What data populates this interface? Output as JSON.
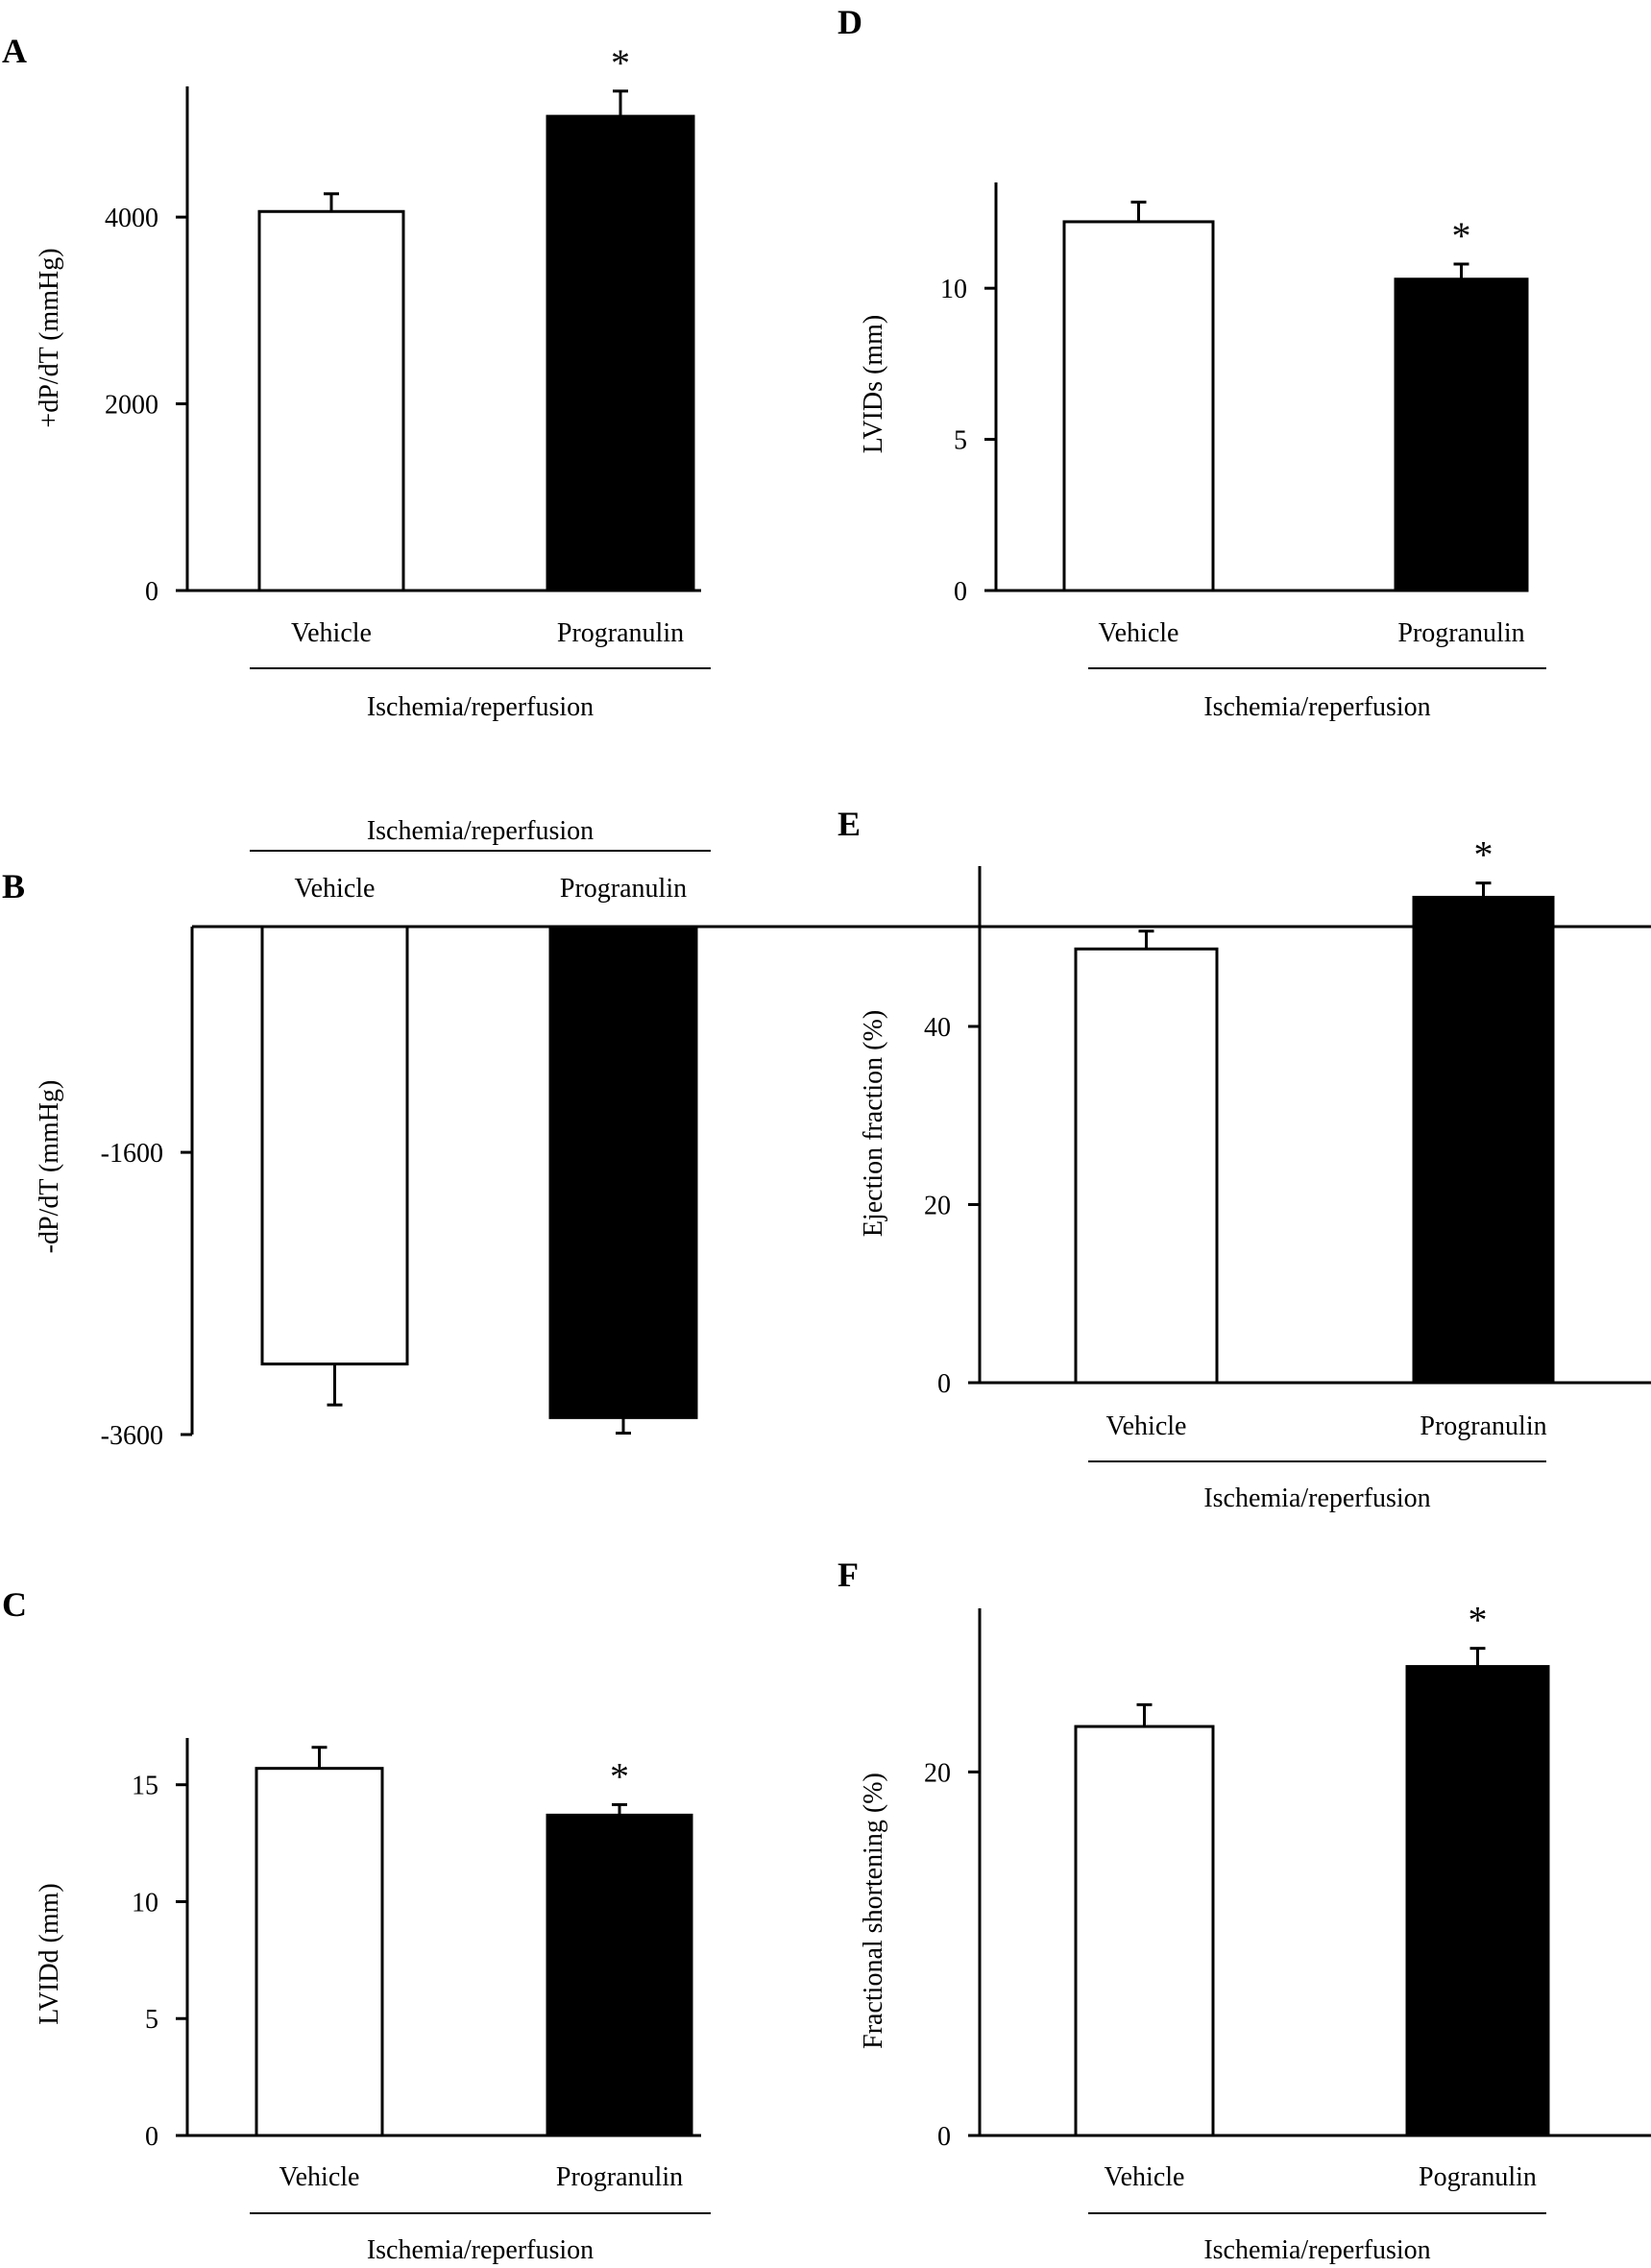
{
  "figure": {
    "colors": {
      "vehicle": "#ffffff",
      "progranulin": "#000000",
      "axis": "#000000"
    }
  },
  "chart_data": [
    {
      "id": "A",
      "panel_label": "A",
      "type": "bar",
      "ylabel": "+dP/dT (mmHg)",
      "ylim": [
        0,
        5400
      ],
      "yticks": [
        0,
        2000,
        4000
      ],
      "yticklabels": [
        "0",
        "2000",
        "4000"
      ],
      "categories": [
        "Vehicle",
        "Progranulin"
      ],
      "values": [
        4060,
        5080
      ],
      "errors": [
        190,
        270
      ],
      "significance": [
        "",
        "*"
      ],
      "group_label": "Ischemia/reperfusion",
      "inverted": false
    },
    {
      "id": "B",
      "panel_label": "B",
      "type": "bar",
      "ylabel": "-dP/dT (mmHg)",
      "ylim": [
        -3600,
        0
      ],
      "yticks": [
        -1600,
        -3600
      ],
      "yticklabels": [
        "-1600",
        "-3600"
      ],
      "categories": [
        "Vehicle",
        "Progranulin"
      ],
      "values": [
        -3100,
        -3480
      ],
      "errors": [
        290,
        110
      ],
      "significance": [
        "",
        ""
      ],
      "group_label": "Ischemia/reperfusion",
      "inverted": true
    },
    {
      "id": "C",
      "panel_label": "C",
      "type": "bar",
      "ylabel": "LVIDd (mm)",
      "ylim": [
        0,
        17
      ],
      "yticks": [
        0,
        5,
        10,
        15
      ],
      "yticklabels": [
        "0",
        "5",
        "10",
        "15"
      ],
      "categories": [
        "Vehicle",
        "Progranulin"
      ],
      "values": [
        15.7,
        13.7
      ],
      "errors": [
        0.9,
        0.45
      ],
      "significance": [
        "",
        "*"
      ],
      "group_label": "Ischemia/reperfusion",
      "inverted": false
    },
    {
      "id": "D",
      "panel_label": "D",
      "type": "bar",
      "ylabel": "LVIDs (mm)",
      "ylim": [
        0,
        13.5
      ],
      "yticks": [
        0,
        5,
        10
      ],
      "yticklabels": [
        "0",
        "5",
        "10"
      ],
      "categories": [
        "Vehicle",
        "Progranulin"
      ],
      "values": [
        12.2,
        10.3
      ],
      "errors": [
        0.65,
        0.5
      ],
      "significance": [
        "",
        "*"
      ],
      "group_label": "Ischemia/reperfusion",
      "inverted": false
    },
    {
      "id": "E",
      "panel_label": "E",
      "type": "bar",
      "ylabel": "Ejection fraction (%)",
      "ylim": [
        0,
        58
      ],
      "yticks": [
        0,
        20,
        40
      ],
      "yticklabels": [
        "0",
        "20",
        "40"
      ],
      "categories": [
        "Vehicle",
        "Progranulin"
      ],
      "values": [
        48.7,
        54.5
      ],
      "errors": [
        2.0,
        1.6
      ],
      "significance": [
        "",
        "*"
      ],
      "group_label": "Ischemia/reperfusion",
      "inverted": false
    },
    {
      "id": "F",
      "panel_label": "F",
      "type": "bar",
      "ylabel": "Fractional shortening (%)",
      "ylim": [
        0,
        29
      ],
      "yticks": [
        0,
        20
      ],
      "yticklabels": [
        "0",
        "20"
      ],
      "categories": [
        "Vehicle",
        "Pogranulin"
      ],
      "values": [
        22.5,
        25.8
      ],
      "errors": [
        1.2,
        1.0
      ],
      "significance": [
        "",
        "*"
      ],
      "group_label": "Ischemia/reperfusion",
      "inverted": false
    }
  ]
}
